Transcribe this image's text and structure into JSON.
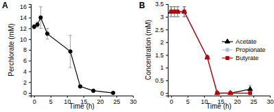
{
  "chart_data": [
    {
      "type": "line",
      "title": "A",
      "xlabel": "Time (h)",
      "ylabel": "Perchlorate (mM)",
      "x": [
        0,
        1,
        2,
        4,
        11,
        14,
        18,
        24
      ],
      "values": [
        12.3,
        12.7,
        14.0,
        11.0,
        7.7,
        1.2,
        0.4,
        0.0
      ],
      "errors": [
        0.4,
        0.5,
        2.0,
        1.0,
        3.0,
        0.2,
        0.1,
        0.1
      ],
      "color": "#000000",
      "marker": "circle",
      "xlim": [
        -1,
        30
      ],
      "xticks": [
        0,
        5,
        10,
        15,
        20,
        25,
        30
      ],
      "ylim": [
        -0.5,
        16.5
      ],
      "yticks": [
        0,
        2,
        4,
        6,
        8,
        10,
        12,
        14,
        16
      ]
    },
    {
      "type": "line",
      "title": "B",
      "xlabel": "Time (h)",
      "ylabel": "Concentration (mM)",
      "x": [
        0,
        1,
        2,
        4,
        11,
        14,
        18,
        24
      ],
      "series": [
        {
          "name": "Acetate",
          "color": "#000000",
          "marker": "triangle",
          "values": [
            3.2,
            3.2,
            3.2,
            3.2,
            1.4,
            0.0,
            0.0,
            0.15
          ],
          "errors": [
            0.2,
            0.2,
            0.2,
            0.2,
            0.05,
            0.0,
            0.0,
            0.15
          ]
        },
        {
          "name": "Propionate",
          "color": "#a9c4e4",
          "marker": "circle",
          "values": [
            3.2,
            3.2,
            3.2,
            3.2,
            1.4,
            0.0,
            0.0,
            0.0
          ],
          "errors": [
            0.2,
            0.2,
            0.2,
            0.2,
            0.05,
            0.0,
            0.0,
            0.0
          ]
        },
        {
          "name": "Butyrate",
          "color": "#c00000",
          "marker": "square",
          "values": [
            3.2,
            3.2,
            3.2,
            3.2,
            1.4,
            0.0,
            0.0,
            0.0
          ],
          "errors": [
            0.2,
            0.2,
            0.2,
            0.2,
            0.05,
            0.0,
            0.0,
            0.0
          ]
        }
      ],
      "legend": "right",
      "xlim": [
        -1,
        30
      ],
      "xticks": [
        0,
        5,
        10,
        15,
        20,
        25,
        30
      ],
      "ylim": [
        -0.1,
        3.5
      ],
      "yticks": [
        0,
        0.5,
        1,
        1.5,
        2,
        2.5,
        3,
        3.5
      ]
    }
  ]
}
